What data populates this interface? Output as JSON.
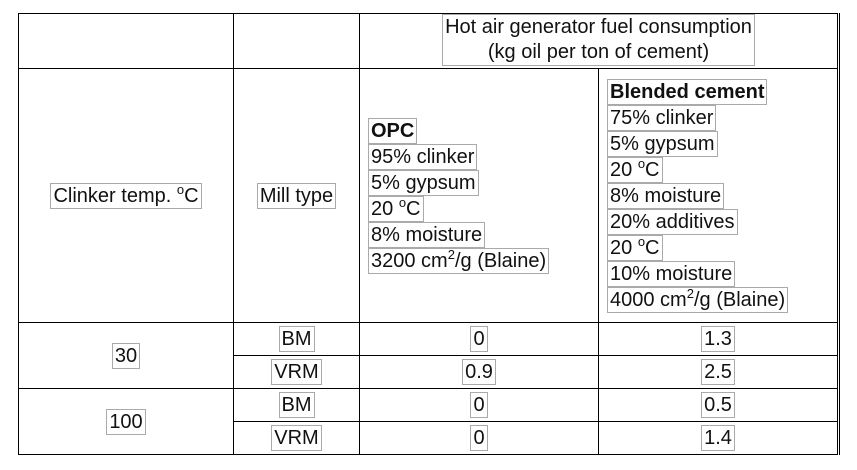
{
  "table": {
    "title": [
      "Hot air generator fuel consumption",
      "(kg oil per ton of cement)"
    ],
    "col_headers": [
      {
        "pre": "Clinker temp. ",
        "sup": "o",
        "post": "C"
      },
      "Mill type",
      [
        {
          "bold": "OPC"
        },
        "95% clinker",
        "5% gypsum",
        {
          "pre": "20 ",
          "sup": "o",
          "post": "C"
        },
        "8% moisture",
        {
          "pre": "3200 cm",
          "sup": "2",
          "post": "/g (Blaine)"
        }
      ],
      [
        {
          "bold": "Blended cement"
        },
        "75% clinker",
        "5% gypsum",
        {
          "pre": "20 ",
          "sup": "o",
          "post": "C"
        },
        "8% moisture",
        "20% additives",
        {
          "pre": "20 ",
          "sup": "o",
          "post": "C"
        },
        "10% moisture",
        {
          "pre": "4000 cm",
          "sup": "2",
          "post": "/g (Blaine)"
        }
      ]
    ],
    "groups": [
      {
        "temp": "30",
        "rows": [
          [
            "BM",
            "0",
            "1.3"
          ],
          [
            "VRM",
            "0.9",
            "2.5"
          ]
        ]
      },
      {
        "temp": "100",
        "rows": [
          [
            "BM",
            "0",
            "0.5"
          ],
          [
            "VRM",
            "0",
            "1.4"
          ]
        ]
      }
    ]
  }
}
